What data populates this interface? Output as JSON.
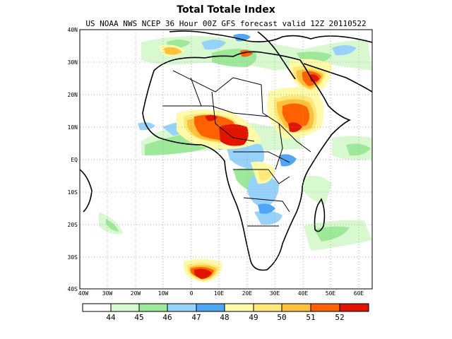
{
  "title": "Total Totale Index",
  "subtitle": "US NOAA NWS NCEP 36 Hour 00Z GFS forecast valid 12Z 20110522",
  "map": {
    "region": "Africa",
    "projection": "lat-lon",
    "lon_range": [
      -40,
      65
    ],
    "lat_range": [
      -40,
      40
    ],
    "lat_labels": [
      "40N",
      "30N",
      "20N",
      "10N",
      "EQ",
      "10S",
      "20S",
      "30S",
      "40S"
    ],
    "lon_labels": [
      "40W",
      "30W",
      "20W",
      "10W",
      "0",
      "10E",
      "20E",
      "30E",
      "40E",
      "50E",
      "60E"
    ]
  },
  "colorbar": {
    "levels": [
      "44",
      "45",
      "46",
      "47",
      "48",
      "49",
      "50",
      "51",
      "52"
    ],
    "colors": [
      "#ffffff",
      "#d8f8d0",
      "#9ee89a",
      "#96d2fa",
      "#50a5f5",
      "#fffaaa",
      "#ffe878",
      "#ffc03c",
      "#ff6000",
      "#e11400"
    ]
  }
}
